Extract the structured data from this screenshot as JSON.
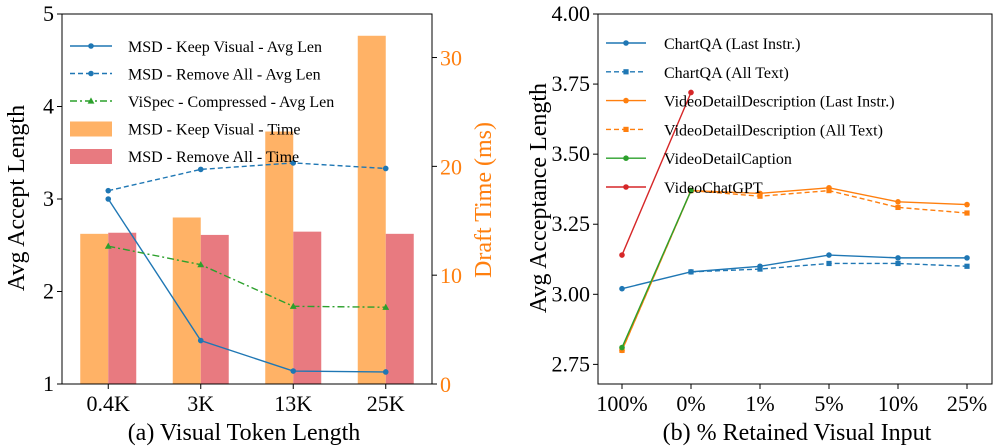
{
  "chart_data": [
    {
      "type": "bar+line",
      "panel_label": "(a) Visual Token Length",
      "xlabel": "(a) Visual Token Length",
      "ylabel": "Avg Accept Length",
      "y2label": "Draft Time (ms)",
      "categories": [
        "0.4K",
        "3K",
        "13K",
        "25K"
      ],
      "ylim": [
        1,
        5
      ],
      "yticks": [
        "1",
        "2",
        "3",
        "4",
        "5"
      ],
      "y2lim": [
        0,
        34
      ],
      "y2ticks": [
        "0",
        "10",
        "20",
        "30"
      ],
      "line_series": [
        {
          "name": "MSD - Keep Visual - Avg Len",
          "values": [
            3.0,
            1.47,
            1.14,
            1.13
          ],
          "color": "#1f77b4",
          "style": "solid",
          "marker": "circle"
        },
        {
          "name": "MSD - Remove All - Avg Len",
          "values": [
            3.09,
            3.32,
            3.39,
            3.33
          ],
          "color": "#1f77b4",
          "style": "dashed",
          "marker": "circle"
        },
        {
          "name": "ViSpec - Compressed - Avg Len",
          "values": [
            2.49,
            2.29,
            1.84,
            1.83
          ],
          "color": "#2ca02c",
          "style": "dashdot",
          "marker": "triangle"
        }
      ],
      "bar_series": [
        {
          "name": "MSD - Keep Visual - Time",
          "values": [
            13.8,
            15.3,
            23.2,
            32.0
          ],
          "color": "#ffb266"
        },
        {
          "name": "MSD - Remove All - Time",
          "values": [
            13.9,
            13.7,
            14.0,
            13.8
          ],
          "color": "#e87a80"
        }
      ]
    },
    {
      "type": "line",
      "panel_label": "(b) % Retained Visual Input",
      "xlabel": "(b) % Retained Visual Input",
      "ylabel": "Avg Acceptance Length",
      "categories": [
        "100%",
        "0%",
        "1%",
        "5%",
        "10%",
        "25%"
      ],
      "ylim": [
        2.68,
        4.0
      ],
      "yticks": [
        "2.75",
        "3.00",
        "3.25",
        "3.50",
        "3.75",
        "4.00"
      ],
      "series": [
        {
          "name": "ChartQA (Last Instr.)",
          "values": [
            3.02,
            3.08,
            3.1,
            3.14,
            3.13,
            3.13
          ],
          "color": "#1f77b4",
          "style": "solid",
          "marker": "circle"
        },
        {
          "name": "ChartQA (All Text)",
          "values": [
            null,
            3.08,
            3.09,
            3.11,
            3.11,
            3.1
          ],
          "color": "#1f77b4",
          "style": "dashed",
          "marker": "square"
        },
        {
          "name": "VideoDetailDescription (Last Instr.)",
          "values": [
            2.8,
            3.37,
            3.36,
            3.38,
            3.33,
            3.32
          ],
          "color": "#ff7f0e",
          "style": "solid",
          "marker": "circle"
        },
        {
          "name": "VideoDetailDescription (All Text)",
          "values": [
            2.8,
            3.37,
            3.35,
            3.37,
            3.31,
            3.29
          ],
          "color": "#ff7f0e",
          "style": "dashed",
          "marker": "square"
        },
        {
          "name": "VideoDetailCaption",
          "values": [
            2.81,
            3.37,
            null,
            null,
            null,
            null
          ],
          "color": "#2ca02c",
          "style": "solid",
          "marker": "circle"
        },
        {
          "name": "VideoChatGPT",
          "values": [
            3.14,
            3.72,
            null,
            null,
            null,
            null
          ],
          "color": "#d62728",
          "style": "solid",
          "marker": "circle"
        }
      ]
    }
  ]
}
